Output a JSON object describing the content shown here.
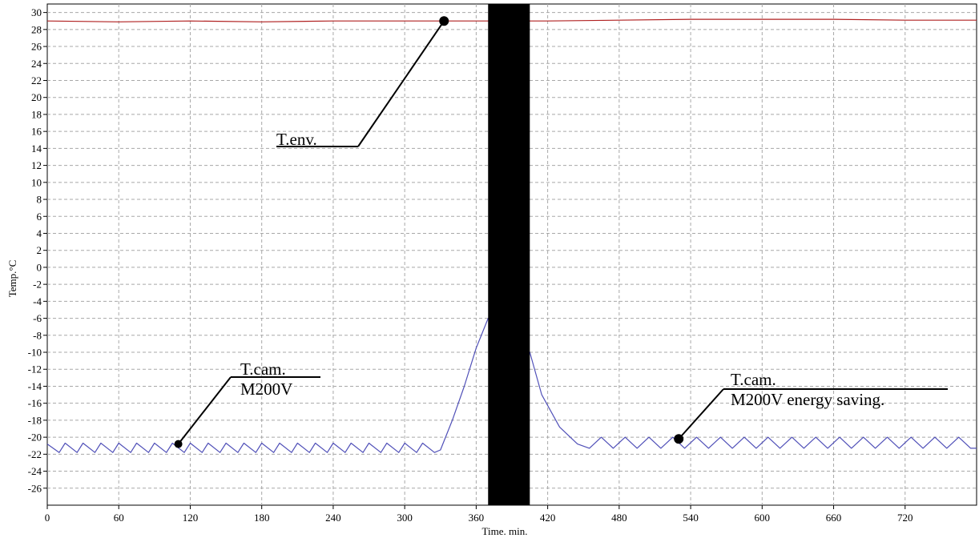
{
  "chart_data": {
    "type": "line",
    "xlabel": "Time. min.",
    "ylabel": "Temp.°C",
    "xlim": [
      0,
      780
    ],
    "ylim": [
      -28,
      31
    ],
    "xticks": [
      "0",
      "60",
      "120",
      "180",
      "240",
      "300",
      "360",
      "420",
      "480",
      "540",
      "600",
      "660",
      "720"
    ],
    "yticks": [
      "30",
      "28",
      "26",
      "24",
      "22",
      "20",
      "18",
      "16",
      "14",
      "12",
      "10",
      "8",
      "6",
      "4",
      "2",
      "0",
      "-2",
      "-4",
      "-6",
      "-8",
      "-10",
      "-12",
      "-14",
      "-16",
      "-18",
      "-20",
      "-22",
      "-24",
      "-26"
    ],
    "grid": true,
    "gap_band": [
      370,
      405
    ],
    "series": [
      {
        "color": "#b02020",
        "x": [
          0,
          60,
          120,
          180,
          240,
          300,
          360,
          370,
          405,
          420,
          480,
          540,
          600,
          660,
          720,
          780
        ],
        "y": [
          29.0,
          28.9,
          29.0,
          28.9,
          29.0,
          29.0,
          29.0,
          29.0,
          29.0,
          29.0,
          29.1,
          29.2,
          29.2,
          29.2,
          29.1,
          29.1
        ]
      },
      {
        "color": "#5050b8",
        "x": [
          0,
          10,
          15,
          25,
          30,
          40,
          45,
          55,
          60,
          70,
          75,
          85,
          90,
          100,
          105,
          115,
          120,
          130,
          135,
          145,
          150,
          160,
          165,
          175,
          180,
          190,
          195,
          205,
          210,
          220,
          225,
          235,
          240,
          250,
          255,
          265,
          270,
          280,
          285,
          295,
          300,
          310,
          315,
          325,
          330,
          340,
          350,
          360,
          370,
          405,
          415,
          430,
          445,
          455,
          465,
          475,
          485,
          495,
          505,
          515,
          525,
          535,
          545,
          555,
          565,
          575,
          585,
          595,
          605,
          615,
          625,
          635,
          645,
          655,
          665,
          675,
          685,
          695,
          705,
          715,
          725,
          735,
          745,
          755,
          765,
          775,
          780
        ],
        "y": [
          -20.8,
          -21.8,
          -20.7,
          -21.8,
          -20.7,
          -21.8,
          -20.7,
          -21.8,
          -20.7,
          -21.8,
          -20.7,
          -21.8,
          -20.7,
          -21.8,
          -20.7,
          -21.8,
          -20.7,
          -21.8,
          -20.7,
          -21.8,
          -20.7,
          -21.8,
          -20.7,
          -21.8,
          -20.7,
          -21.8,
          -20.7,
          -21.8,
          -20.7,
          -21.8,
          -20.7,
          -21.8,
          -20.7,
          -21.8,
          -20.7,
          -21.8,
          -20.7,
          -21.8,
          -20.7,
          -21.8,
          -20.7,
          -21.8,
          -20.7,
          -21.8,
          -21.5,
          -18.0,
          -14.0,
          -9.5,
          -6.0,
          -10.0,
          -15.0,
          -18.8,
          -20.8,
          -21.3,
          -20.0,
          -21.3,
          -20.0,
          -21.3,
          -20.0,
          -21.3,
          -20.0,
          -21.3,
          -20.0,
          -21.3,
          -20.0,
          -21.3,
          -20.0,
          -21.3,
          -20.0,
          -21.3,
          -20.0,
          -21.3,
          -20.0,
          -21.3,
          -20.0,
          -21.3,
          -20.0,
          -21.3,
          -20.0,
          -21.3,
          -20.0,
          -21.3,
          -20.0,
          -21.3,
          -20.0,
          -21.3,
          -21.3
        ]
      }
    ],
    "annotations": [
      {
        "lines": [
          "T.env."
        ],
        "point": [
          333,
          29.0
        ]
      },
      {
        "lines": [
          "T.cam.",
          "M200V"
        ],
        "point": [
          110,
          -20.8
        ]
      },
      {
        "lines": [
          "T.cam.",
          "M200V energy saving."
        ],
        "point": [
          530,
          -20.2
        ]
      }
    ]
  }
}
